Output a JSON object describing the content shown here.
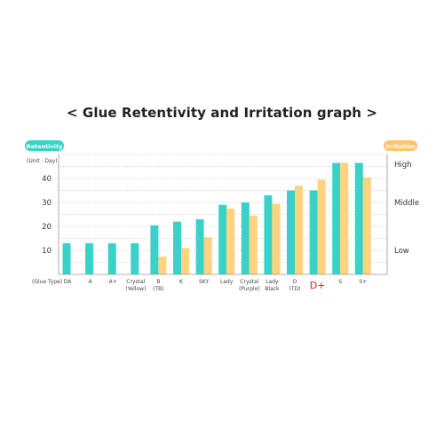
{
  "chart_data": {
    "type": "bar",
    "title": "< Glue Retentivity and Irritation graph >",
    "left_axis_label": "Retentivity",
    "right_axis_label": "Irritation",
    "unit_label": "(Unit : Day)",
    "xlabel_prefix": "(Glue Type)",
    "ylim": [
      0,
      50
    ],
    "yticks": [
      10,
      20,
      30,
      40
    ],
    "right_axis_ticks": [
      {
        "label": "High",
        "value": 46
      },
      {
        "label": "Middle",
        "value": 30
      },
      {
        "label": "Low",
        "value": 10
      }
    ],
    "grid": true,
    "highlight_category": "D+",
    "categories": [
      [
        "DA"
      ],
      [
        "A"
      ],
      [
        "A+"
      ],
      [
        "Crystal",
        "(Yellow)"
      ],
      [
        "B",
        "(TB)"
      ],
      [
        "K"
      ],
      [
        "SKY"
      ],
      [
        "Lady"
      ],
      [
        "Crystal",
        "(Purple)"
      ],
      [
        "Lady",
        "Black"
      ],
      [
        "D",
        "(TD)"
      ],
      [
        "D+"
      ],
      [
        "S"
      ],
      [
        "S+"
      ]
    ],
    "series": [
      {
        "name": "Retentivity",
        "color": "#3ad1c8",
        "values": [
          13,
          13,
          13,
          13,
          20.5,
          22,
          23,
          29,
          30,
          33,
          35,
          35,
          46.5,
          46.5
        ]
      },
      {
        "name": "Irritation",
        "color": "#ffd27f",
        "values": [
          null,
          null,
          null,
          null,
          7.5,
          11,
          15.5,
          27.5,
          24.5,
          29.5,
          37,
          39.5,
          46.5,
          40.5
        ]
      }
    ]
  }
}
